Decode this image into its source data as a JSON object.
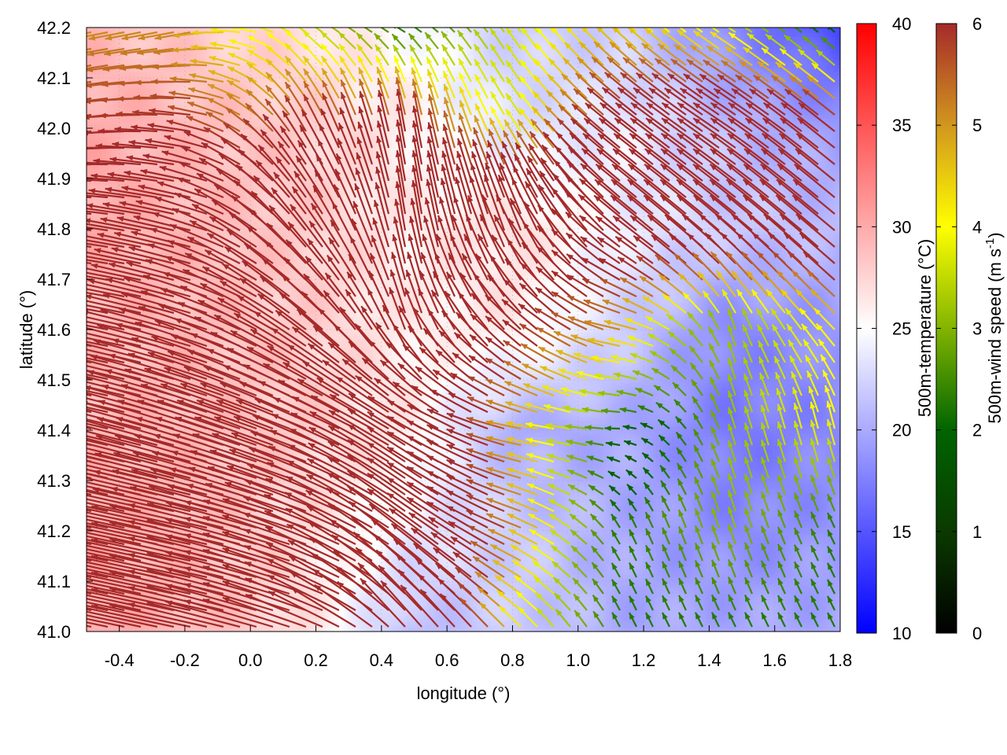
{
  "chart_data": {
    "type": "heatmap",
    "subtype": "vector-field-over-scalar-field",
    "xlabel": "longitude (°)",
    "ylabel": "latitude (°)",
    "xlim": [
      -0.5,
      1.8
    ],
    "ylim": [
      41.0,
      42.2
    ],
    "xticks": [
      "-0.4",
      "-0.2",
      "0.0",
      "0.2",
      "0.4",
      "0.6",
      "0.8",
      "1.0",
      "1.2",
      "1.4",
      "1.6",
      "1.8"
    ],
    "xtick_values": [
      -0.4,
      -0.2,
      0.0,
      0.2,
      0.4,
      0.6,
      0.8,
      1.0,
      1.2,
      1.4,
      1.6,
      1.8
    ],
    "yticks": [
      "41.0",
      "41.1",
      "41.2",
      "41.3",
      "41.4",
      "41.5",
      "41.6",
      "41.7",
      "41.8",
      "41.9",
      "42.0",
      "42.1",
      "42.2"
    ],
    "ytick_values": [
      41.0,
      41.1,
      41.2,
      41.3,
      41.4,
      41.5,
      41.6,
      41.7,
      41.8,
      41.9,
      42.0,
      42.1,
      42.2
    ],
    "grid": true,
    "temperature_colorbar": {
      "label": "500m-temperature (°C)",
      "range": [
        10,
        40
      ],
      "ticks": [
        "10",
        "15",
        "20",
        "25",
        "30",
        "35",
        "40"
      ],
      "tick_values": [
        10,
        15,
        20,
        25,
        30,
        35,
        40
      ],
      "colors": {
        "low": "#0000ff",
        "mid": "#ffffff",
        "high": "#ff0000"
      }
    },
    "wind_colorbar": {
      "label": "500m-wind speed (m s",
      "label_sup": "-1",
      "label_end": ")",
      "range": [
        0,
        6
      ],
      "ticks": [
        "0",
        "1",
        "2",
        "3",
        "4",
        "5",
        "6"
      ],
      "tick_values": [
        0,
        1,
        2,
        3,
        4,
        5,
        6
      ],
      "colors": [
        "#000000",
        "#0a3a00",
        "#006400",
        "#82b400",
        "#ffff00",
        "#d2961e",
        "#a52a2a"
      ]
    },
    "grid_lon": [
      -0.5,
      -0.171,
      0.157,
      0.486,
      0.814,
      1.143,
      1.471,
      1.8
    ],
    "grid_lat": [
      42.2,
      42.0,
      41.8,
      41.6,
      41.4,
      41.2,
      41.0
    ],
    "temperature": [
      [
        29,
        28,
        27,
        25,
        22,
        22,
        18,
        14
      ],
      [
        30,
        29,
        28,
        26,
        23,
        24,
        21,
        19
      ],
      [
        30,
        29,
        28,
        26,
        27,
        24,
        22,
        21
      ],
      [
        29,
        29,
        28,
        26,
        26,
        22,
        18,
        19
      ],
      [
        29,
        29,
        28,
        26,
        20,
        20,
        17,
        18
      ],
      [
        30,
        29,
        27,
        24,
        22,
        20,
        18,
        19
      ],
      [
        30,
        29,
        27,
        21,
        22,
        20,
        20,
        20
      ]
    ],
    "wind_u": [
      [
        -5,
        -5,
        -3,
        -2,
        -2,
        -3,
        -3,
        -1
      ],
      [
        -6,
        -6,
        -3,
        -1,
        -2,
        -5,
        -6,
        -5
      ],
      [
        -8,
        -8,
        -5,
        -1,
        -3,
        -6,
        -6,
        -6
      ],
      [
        -12,
        -10,
        -7,
        -2,
        -5,
        -5,
        -1,
        -3
      ],
      [
        -14,
        -13,
        -10,
        -8,
        -5,
        -2,
        -1,
        -1
      ],
      [
        -14,
        -14,
        -12,
        -8,
        -5,
        -1,
        -1,
        -1
      ],
      [
        -14,
        -14,
        -12,
        -6,
        -3,
        -1,
        -1,
        -1
      ]
    ],
    "wind_v": [
      [
        -1,
        -1,
        2,
        1,
        3,
        3,
        2,
        1
      ],
      [
        -1,
        1,
        5,
        6,
        3,
        4,
        4,
        4
      ],
      [
        1,
        2,
        6,
        7,
        8,
        5,
        5,
        5
      ],
      [
        2,
        3,
        5,
        6,
        5,
        1,
        3,
        3
      ],
      [
        3,
        4,
        4,
        5,
        1,
        0,
        3,
        4
      ],
      [
        3,
        3,
        4,
        6,
        2,
        2,
        3,
        2
      ],
      [
        3,
        3,
        4,
        7,
        3,
        2,
        2,
        2
      ]
    ]
  }
}
